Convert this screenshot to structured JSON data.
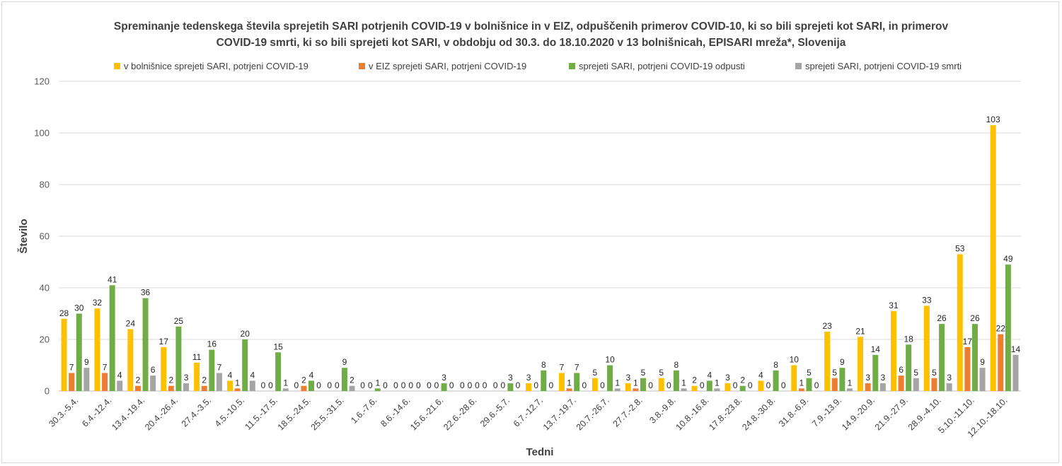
{
  "chart_data": {
    "type": "bar",
    "title_lines": [
      "Spreminanje tedenskega števila sprejetih SARI potrjenih COVID-19 v bolnišnice in v EIZ, odpuščenih primerov COVID-10, ki so bili sprejeti kot SARI, in primerov",
      "COVID-19 smrti, ki so bili sprejeti kot SARI, v obdobju od 30.3. do 18.10.2020 v 13 bolnišnicah, EPISARI mreža*, Slovenija"
    ],
    "xlabel": "Tedni",
    "ylabel": "Število",
    "ylim": [
      0,
      120
    ],
    "yticks": [
      0,
      20,
      40,
      60,
      80,
      100,
      120
    ],
    "grid": true,
    "legend_position": "top",
    "categories": [
      "30.3.-5.4.",
      "6.4.-12.4.",
      "13.4.-19.4.",
      "20.4.-26.4.",
      "27.4.-3.5.",
      "4.5.-10.5.",
      "11.5.-17.5.",
      "18.5.-24.5.",
      "25.5.-31.5.",
      "1.6.-7.6.",
      "8.6.-14.6.",
      "15.6.-21.6.",
      "22.6.-28.6.",
      "29.6.-5.7.",
      "6.7.-12.7.",
      "13.7.-19.7.",
      "20.7.-26.7.",
      "27.7.-2.8.",
      "3.8.-9.8.",
      "10.8.-16.8.",
      "17.8.-23.8.",
      "24.8.-30.8.",
      "31.8.-6.9.",
      "7.9.-13.9.",
      "14.9.-20.9.",
      "21.9.-27.9.",
      "28.9.-4.10.",
      "5.10.-11.10.",
      "12.10.-18.10."
    ],
    "series": [
      {
        "name": "v bolnišnice sprejeti SARI, potrjeni COVID-19",
        "color": "#FFC000",
        "values": [
          28,
          32,
          24,
          17,
          11,
          4,
          0,
          0,
          0,
          0,
          0,
          0,
          0,
          0,
          3,
          7,
          5,
          3,
          5,
          2,
          3,
          4,
          10,
          23,
          21,
          31,
          33,
          53,
          103
        ]
      },
      {
        "name": "v EIZ sprejeti SARI, potrjeni COVID-19",
        "color": "#ED7D31",
        "values": [
          7,
          7,
          2,
          2,
          2,
          1,
          0,
          2,
          0,
          0,
          0,
          0,
          0,
          0,
          0,
          1,
          0,
          1,
          0,
          0,
          0,
          0,
          1,
          5,
          3,
          6,
          5,
          17,
          22
        ]
      },
      {
        "name": "sprejeti SARI, potrjeni COVID-19 odpusti",
        "color": "#70AD47",
        "values": [
          30,
          41,
          36,
          25,
          16,
          20,
          15,
          4,
          9,
          1,
          0,
          3,
          0,
          3,
          8,
          7,
          10,
          5,
          8,
          4,
          2,
          8,
          5,
          9,
          14,
          18,
          26,
          26,
          49
        ]
      },
      {
        "name": "sprejeti SARI, potrjeni COVID-19 smrti",
        "color": "#A5A5A5",
        "values": [
          9,
          4,
          6,
          3,
          7,
          4,
          1,
          0,
          2,
          0,
          0,
          0,
          0,
          0,
          0,
          0,
          1,
          0,
          1,
          1,
          0,
          0,
          0,
          1,
          3,
          5,
          3,
          9,
          14
        ]
      }
    ]
  }
}
